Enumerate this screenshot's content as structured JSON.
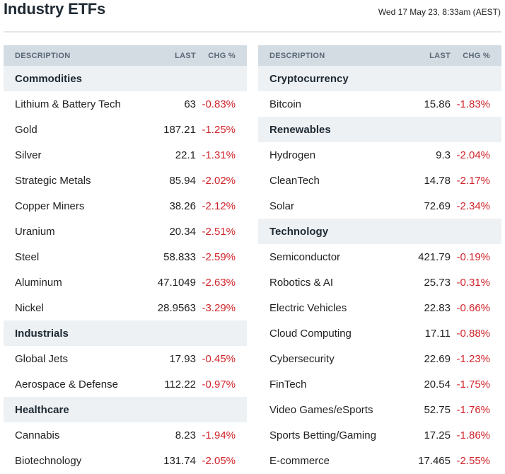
{
  "title": "Industry ETFs",
  "timestamp": "Wed 17 May 23, 8:33am (AEST)",
  "columns": {
    "description": "DESCRIPTION",
    "last": "LAST",
    "chg": "CHG %"
  },
  "colors": {
    "header_bg": "#d3dbe3",
    "group_bg": "#edf1f4",
    "negative": "#d0242b"
  },
  "left": [
    {
      "group": "Commodities"
    },
    {
      "name": "Lithium & Battery Tech",
      "last": "63",
      "chg": "-0.83%"
    },
    {
      "name": "Gold",
      "last": "187.21",
      "chg": "-1.25%"
    },
    {
      "name": "Silver",
      "last": "22.1",
      "chg": "-1.31%"
    },
    {
      "name": "Strategic Metals",
      "last": "85.94",
      "chg": "-2.02%"
    },
    {
      "name": "Copper Miners",
      "last": "38.26",
      "chg": "-2.12%"
    },
    {
      "name": "Uranium",
      "last": "20.34",
      "chg": "-2.51%"
    },
    {
      "name": "Steel",
      "last": "58.833",
      "chg": "-2.59%"
    },
    {
      "name": "Aluminum",
      "last": "47.1049",
      "chg": "-2.63%"
    },
    {
      "name": "Nickel",
      "last": "28.9563",
      "chg": "-3.29%"
    },
    {
      "group": "Industrials"
    },
    {
      "name": "Global Jets",
      "last": "17.93",
      "chg": "-0.45%"
    },
    {
      "name": "Aerospace & Defense",
      "last": "112.22",
      "chg": "-0.97%"
    },
    {
      "group": "Healthcare"
    },
    {
      "name": "Cannabis",
      "last": "8.23",
      "chg": "-1.94%"
    },
    {
      "name": "Biotechnology",
      "last": "131.74",
      "chg": "-2.05%"
    }
  ],
  "right": [
    {
      "group": "Cryptocurrency"
    },
    {
      "name": "Bitcoin",
      "last": "15.86",
      "chg": "-1.83%"
    },
    {
      "group": "Renewables"
    },
    {
      "name": "Hydrogen",
      "last": "9.3",
      "chg": "-2.04%"
    },
    {
      "name": "CleanTech",
      "last": "14.78",
      "chg": "-2.17%"
    },
    {
      "name": "Solar",
      "last": "72.69",
      "chg": "-2.34%"
    },
    {
      "group": "Technology"
    },
    {
      "name": "Semiconductor",
      "last": "421.79",
      "chg": "-0.19%"
    },
    {
      "name": "Robotics & AI",
      "last": "25.73",
      "chg": "-0.31%"
    },
    {
      "name": "Electric Vehicles",
      "last": "22.83",
      "chg": "-0.66%"
    },
    {
      "name": "Cloud Computing",
      "last": "17.11",
      "chg": "-0.88%"
    },
    {
      "name": "Cybersecurity",
      "last": "22.69",
      "chg": "-1.23%"
    },
    {
      "name": "FinTech",
      "last": "20.54",
      "chg": "-1.75%"
    },
    {
      "name": "Video Games/eSports",
      "last": "52.75",
      "chg": "-1.76%"
    },
    {
      "name": "Sports Betting/Gaming",
      "last": "17.25",
      "chg": "-1.86%"
    },
    {
      "name": "E-commerce",
      "last": "17.465",
      "chg": "-2.55%"
    }
  ]
}
